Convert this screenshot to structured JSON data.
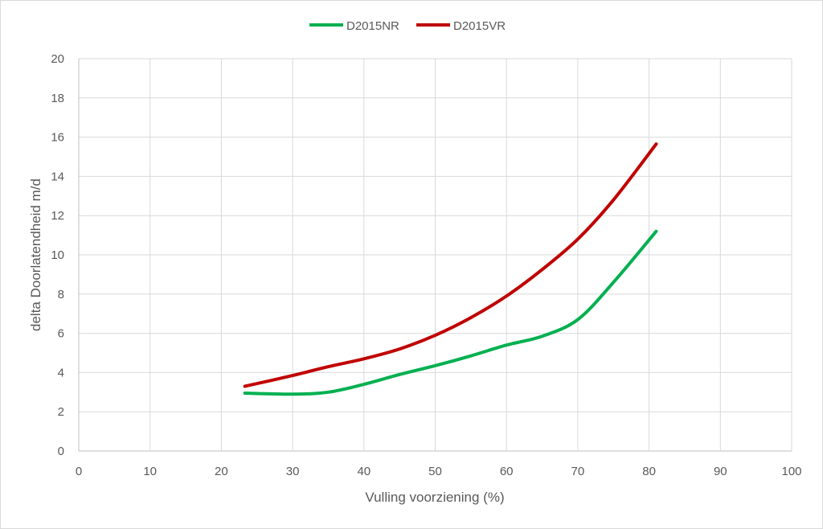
{
  "chart_data": {
    "type": "line",
    "xlabel": "Vulling  voorziening (%)",
    "ylabel": "delta Doorlatendheid m/d",
    "xlim": [
      0,
      100
    ],
    "ylim": [
      0,
      20
    ],
    "x_ticks": [
      0,
      10,
      20,
      30,
      40,
      50,
      60,
      70,
      80,
      90,
      100
    ],
    "y_ticks": [
      0,
      2,
      4,
      6,
      8,
      10,
      12,
      14,
      16,
      18,
      20
    ],
    "grid": true,
    "legend_position": "top-center",
    "series": [
      {
        "name": "D2015NR",
        "color": "#00b050",
        "x": [
          23.3,
          30,
          35,
          40,
          45,
          50,
          55,
          60,
          65,
          70,
          75,
          81
        ],
        "y": [
          2.95,
          2.9,
          3.0,
          3.4,
          3.9,
          4.35,
          4.85,
          5.4,
          5.85,
          6.7,
          8.6,
          11.2
        ]
      },
      {
        "name": "D2015VR",
        "color": "#c00000",
        "x": [
          23.3,
          30,
          35,
          40,
          45,
          50,
          55,
          60,
          65,
          70,
          75,
          81
        ],
        "y": [
          3.3,
          3.85,
          4.3,
          4.7,
          5.2,
          5.9,
          6.8,
          7.9,
          9.25,
          10.8,
          12.8,
          15.65
        ]
      }
    ]
  }
}
